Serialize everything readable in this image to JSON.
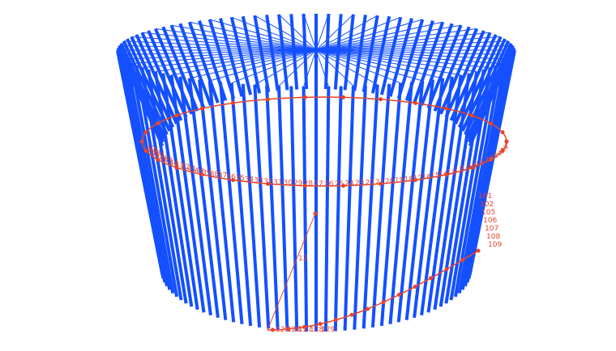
{
  "colors": {
    "background": "#ffffff",
    "cylinder": "#1450ff",
    "path": "#e8442c"
  },
  "cylinder": {
    "bar_count": 100
  },
  "path": {
    "upper_ring_labels": [
      "1",
      "2",
      "3",
      "4",
      "5",
      "6",
      "7",
      "8",
      "9",
      "10",
      "11",
      "12",
      "13",
      "14",
      "15",
      "16",
      "17",
      "18",
      "19",
      "20",
      "21",
      "22",
      "23",
      "24",
      "25",
      "26",
      "27",
      "28",
      "29",
      "30",
      "31",
      "32",
      "33",
      "34",
      "35",
      "36",
      "37",
      "38",
      "39",
      "40",
      "41",
      "42",
      "43",
      "44",
      "45",
      "46",
      "47",
      "48",
      "49",
      "50"
    ],
    "side_labels": [
      "101",
      "102",
      "105",
      "106",
      "107",
      "108",
      "109"
    ],
    "lower_ring_labels": [
      "125",
      "126",
      "127",
      "128",
      "129"
    ],
    "center_label": "12"
  }
}
